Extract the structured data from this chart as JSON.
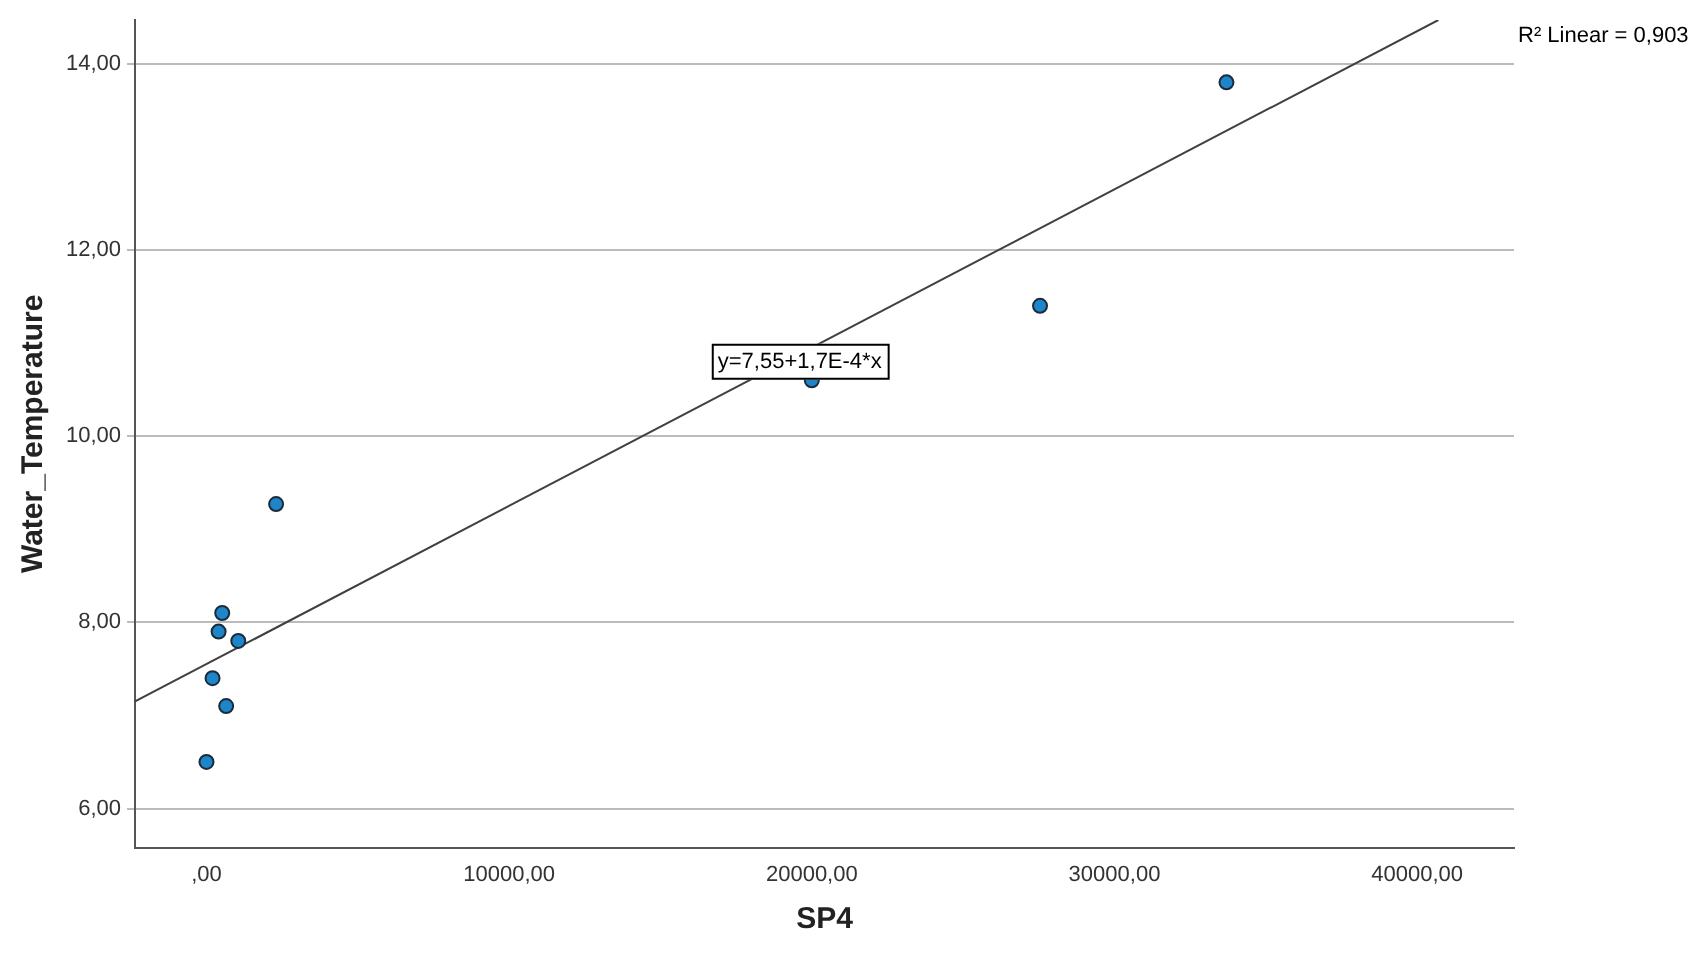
{
  "chart_data": {
    "type": "scatter",
    "xlabel": "SP4",
    "ylabel": "Water_Temperature",
    "xlim": [
      -2360,
      43200
    ],
    "ylim": [
      5.58,
      14.47
    ],
    "xticks": [
      {
        "value": 0,
        "label": ",00"
      },
      {
        "value": 10000,
        "label": "10000,00"
      },
      {
        "value": 20000,
        "label": "20000,00"
      },
      {
        "value": 30000,
        "label": "30000,00"
      },
      {
        "value": 40000,
        "label": "40000,00"
      }
    ],
    "yticks": [
      {
        "value": 6,
        "label": "6,00"
      },
      {
        "value": 8,
        "label": "8,00"
      },
      {
        "value": 10,
        "label": "10,00"
      },
      {
        "value": 12,
        "label": "12,00"
      },
      {
        "value": 14,
        "label": "14,00"
      }
    ],
    "grid": "y",
    "legend": false,
    "series": [
      {
        "type": "scatter",
        "marker": "circle",
        "color": "#1f85c9",
        "x": [
          0,
          200,
          400,
          520,
          650,
          1050,
          2300,
          20000,
          27540,
          33700
        ],
        "values": [
          6.5,
          7.4,
          7.9,
          8.1,
          7.1,
          7.8,
          9.27,
          10.6,
          11.4,
          13.8
        ]
      },
      {
        "type": "line",
        "marker": "none",
        "color": "#404040",
        "x": [
          -2360,
          40700
        ],
        "values": [
          7.15,
          14.47
        ]
      }
    ],
    "annotations": [
      "R² Linear = 0,903",
      {
        "text": "y=7,55+1,7E-4*x",
        "x": 19600,
        "y": 10.8
      }
    ]
  }
}
